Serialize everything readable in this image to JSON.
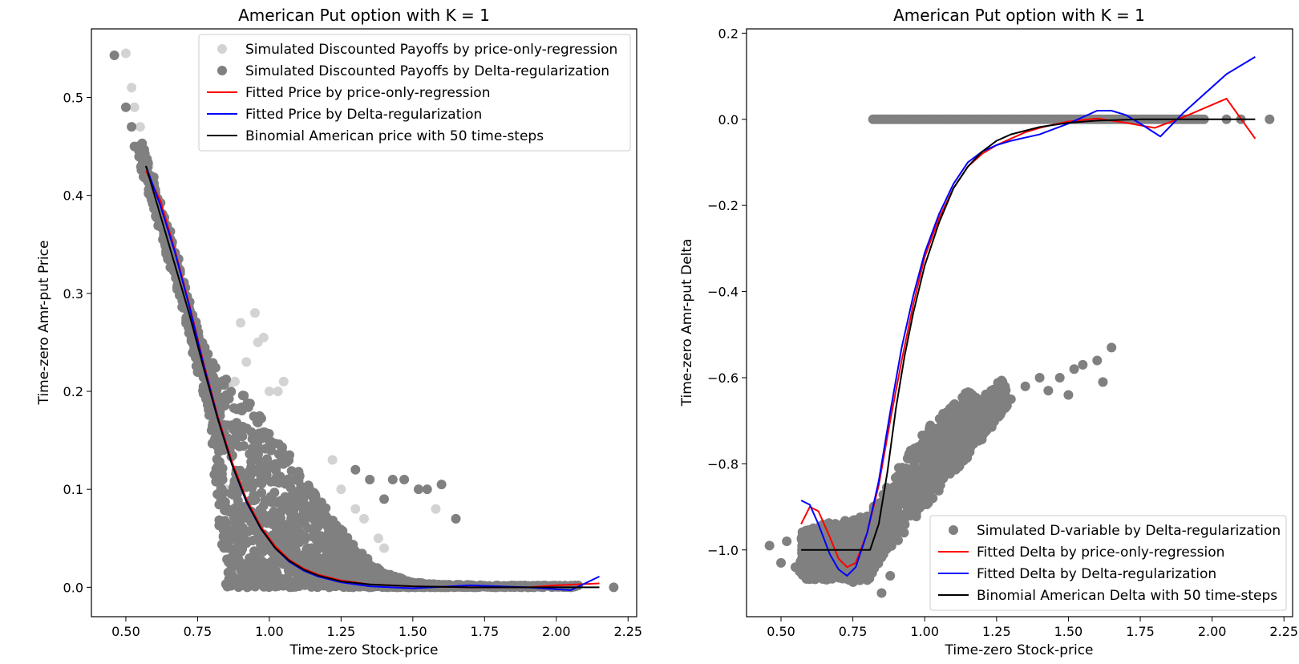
{
  "chart_data": [
    {
      "type": "scatter",
      "title": "American Put option with K = 1",
      "xlabel": "Time-zero Stock-price",
      "ylabel": "Time-zero Amr-put Price",
      "xlim": [
        0.38,
        2.28
      ],
      "ylim": [
        -0.03,
        0.57
      ],
      "xticks": [
        "0.50",
        "0.75",
        "1.00",
        "1.25",
        "1.50",
        "1.75",
        "2.00",
        "2.25"
      ],
      "yticks": [
        "0.0",
        "0.1",
        "0.2",
        "0.3",
        "0.4",
        "0.5"
      ],
      "grid": false,
      "legend_position": "top-right",
      "series": [
        {
          "name": "Simulated Discounted Payoffs by price-only-regression",
          "kind": "scatter",
          "color": "#d3d3d3",
          "points": [
            [
              0.5,
              0.545
            ],
            [
              0.52,
              0.51
            ],
            [
              0.53,
              0.49
            ],
            [
              0.55,
              0.47
            ],
            [
              0.58,
              0.43
            ],
            [
              0.86,
              0.205
            ],
            [
              0.88,
              0.21
            ],
            [
              0.9,
              0.27
            ],
            [
              0.92,
              0.23
            ],
            [
              0.95,
              0.28
            ],
            [
              0.96,
              0.25
            ],
            [
              0.98,
              0.255
            ],
            [
              1.0,
              0.2
            ],
            [
              1.03,
              0.2
            ],
            [
              1.05,
              0.21
            ],
            [
              0.83,
              0.14
            ],
            [
              0.84,
              0.05
            ],
            [
              0.85,
              0.1
            ],
            [
              1.22,
              0.13
            ],
            [
              1.25,
              0.1
            ],
            [
              1.3,
              0.08
            ],
            [
              1.33,
              0.07
            ],
            [
              1.38,
              0.05
            ],
            [
              1.4,
              0.04
            ],
            [
              1.58,
              0.08
            ]
          ]
        },
        {
          "name": "Simulated Discounted Payoffs by Delta-regularization",
          "kind": "scatter-dense",
          "color": "#808080",
          "points": [
            [
              0.46,
              0.543
            ],
            [
              0.5,
              0.49
            ],
            [
              0.52,
              0.47
            ],
            [
              0.53,
              0.45
            ],
            [
              1.3,
              0.12
            ],
            [
              1.35,
              0.11
            ],
            [
              1.4,
              0.09
            ],
            [
              1.43,
              0.11
            ],
            [
              1.47,
              0.11
            ],
            [
              1.52,
              0.1
            ],
            [
              1.55,
              0.1
            ],
            [
              1.6,
              0.105
            ],
            [
              1.65,
              0.07
            ],
            [
              2.2,
              0.0
            ],
            [
              1.9,
              0.0
            ],
            [
              2.05,
              0.0
            ]
          ],
          "band": [
            [
              0.55,
              0.435,
              0.46
            ],
            [
              0.6,
              0.39,
              0.41
            ],
            [
              0.65,
              0.34,
              0.36
            ],
            [
              0.7,
              0.29,
              0.31
            ],
            [
              0.75,
              0.23,
              0.26
            ],
            [
              0.8,
              0.17,
              0.23
            ],
            [
              0.85,
              0.0,
              0.21
            ],
            [
              0.9,
              0.0,
              0.2
            ],
            [
              0.95,
              0.0,
              0.18
            ],
            [
              1.0,
              0.0,
              0.16
            ],
            [
              1.05,
              0.0,
              0.14
            ],
            [
              1.1,
              0.0,
              0.12
            ],
            [
              1.15,
              0.0,
              0.1
            ],
            [
              1.2,
              0.0,
              0.08
            ],
            [
              1.25,
              0.0,
              0.06
            ],
            [
              1.3,
              0.0,
              0.04
            ],
            [
              1.35,
              0.0,
              0.025
            ],
            [
              1.4,
              0.0,
              0.015
            ],
            [
              1.45,
              0.0,
              0.01
            ],
            [
              1.5,
              0.0,
              0.005
            ],
            [
              1.6,
              0.0,
              0.003
            ],
            [
              1.8,
              0.0,
              0.002
            ],
            [
              2.08,
              0.0,
              0.002
            ]
          ]
        },
        {
          "name": "Fitted Price by price-only-regression",
          "kind": "line",
          "color": "#ff0000",
          "points": [
            [
              0.57,
              0.425
            ],
            [
              0.62,
              0.395
            ],
            [
              0.67,
              0.345
            ],
            [
              0.72,
              0.29
            ],
            [
              0.77,
              0.23
            ],
            [
              0.82,
              0.175
            ],
            [
              0.87,
              0.128
            ],
            [
              0.92,
              0.09
            ],
            [
              0.97,
              0.062
            ],
            [
              1.02,
              0.042
            ],
            [
              1.07,
              0.028
            ],
            [
              1.12,
              0.019
            ],
            [
              1.17,
              0.013
            ],
            [
              1.25,
              0.007
            ],
            [
              1.35,
              0.003
            ],
            [
              1.5,
              0.001
            ],
            [
              1.7,
              0.0
            ],
            [
              1.9,
              0.0
            ],
            [
              2.0,
              0.002
            ],
            [
              2.15,
              0.004
            ]
          ]
        },
        {
          "name": "Fitted Price by Delta-regularization",
          "kind": "line",
          "color": "#0000ff",
          "points": [
            [
              0.57,
              0.43
            ],
            [
              0.62,
              0.39
            ],
            [
              0.67,
              0.343
            ],
            [
              0.72,
              0.288
            ],
            [
              0.77,
              0.228
            ],
            [
              0.82,
              0.173
            ],
            [
              0.87,
              0.125
            ],
            [
              0.92,
              0.087
            ],
            [
              0.97,
              0.06
            ],
            [
              1.02,
              0.04
            ],
            [
              1.07,
              0.026
            ],
            [
              1.12,
              0.017
            ],
            [
              1.17,
              0.011
            ],
            [
              1.25,
              0.005
            ],
            [
              1.35,
              0.001
            ],
            [
              1.5,
              -0.001
            ],
            [
              1.7,
              0.002
            ],
            [
              1.9,
              0.0
            ],
            [
              2.05,
              -0.003
            ],
            [
              2.15,
              0.011
            ]
          ]
        },
        {
          "name": "Binomial American price with 50 time-steps",
          "kind": "line",
          "color": "#000000",
          "points": [
            [
              0.57,
              0.43
            ],
            [
              0.62,
              0.38
            ],
            [
              0.67,
              0.33
            ],
            [
              0.72,
              0.28
            ],
            [
              0.77,
              0.225
            ],
            [
              0.82,
              0.172
            ],
            [
              0.87,
              0.125
            ],
            [
              0.92,
              0.088
            ],
            [
              0.97,
              0.06
            ],
            [
              1.02,
              0.04
            ],
            [
              1.07,
              0.027
            ],
            [
              1.12,
              0.018
            ],
            [
              1.17,
              0.012
            ],
            [
              1.25,
              0.006
            ],
            [
              1.35,
              0.003
            ],
            [
              1.5,
              0.001
            ],
            [
              1.7,
              0.0
            ],
            [
              1.9,
              0.0
            ],
            [
              2.15,
              0.0
            ]
          ]
        }
      ]
    },
    {
      "type": "scatter",
      "title": "American Put option with K = 1",
      "xlabel": "Time-zero Stock-price",
      "ylabel": "Time-zero Amr-put Delta",
      "xlim": [
        0.38,
        2.28
      ],
      "ylim": [
        -1.155,
        0.21
      ],
      "xticks": [
        "0.50",
        "0.75",
        "1.00",
        "1.25",
        "1.50",
        "1.75",
        "2.00",
        "2.25"
      ],
      "yticks": [
        "0.2",
        "0.0",
        "−0.2",
        "−0.4",
        "−0.6",
        "−0.8",
        "−1.0"
      ],
      "grid": false,
      "legend_position": "bottom-right",
      "series": [
        {
          "name": "Simulated D-variable by Delta-regularization",
          "kind": "scatter-dense",
          "color": "#808080",
          "points": [
            [
              0.46,
              -0.99
            ],
            [
              0.5,
              -1.03
            ],
            [
              0.52,
              -0.98
            ],
            [
              0.55,
              -1.04
            ],
            [
              1.3,
              -0.65
            ],
            [
              1.35,
              -0.62
            ],
            [
              1.4,
              -0.6
            ],
            [
              1.43,
              -0.63
            ],
            [
              1.47,
              -0.6
            ],
            [
              1.52,
              -0.58
            ],
            [
              1.55,
              -0.57
            ],
            [
              1.6,
              -0.56
            ],
            [
              1.65,
              -0.53
            ],
            [
              1.62,
              -0.61
            ],
            [
              1.5,
              -0.64
            ],
            [
              0.85,
              -1.1
            ],
            [
              0.8,
              -1.07
            ],
            [
              0.88,
              -1.06
            ],
            [
              2.2,
              0.0
            ],
            [
              2.1,
              0.0
            ],
            [
              2.05,
              0.0
            ]
          ],
          "band": [
            [
              0.57,
              -1.06,
              -0.96
            ],
            [
              0.6,
              -1.07,
              -0.95
            ],
            [
              0.65,
              -1.07,
              -0.94
            ],
            [
              0.7,
              -1.07,
              -0.93
            ],
            [
              0.75,
              -1.08,
              -0.93
            ],
            [
              0.8,
              -1.07,
              -0.92
            ],
            [
              0.85,
              -1.02,
              -0.88
            ],
            [
              0.9,
              -0.98,
              -0.82
            ],
            [
              0.95,
              -0.94,
              -0.77
            ],
            [
              1.0,
              -0.9,
              -0.73
            ],
            [
              1.05,
              -0.86,
              -0.69
            ],
            [
              1.1,
              -0.82,
              -0.66
            ],
            [
              1.15,
              -0.78,
              -0.63
            ],
            [
              1.2,
              -0.74,
              -0.65
            ],
            [
              1.25,
              -0.7,
              -0.62
            ],
            [
              1.28,
              -0.67,
              -0.6
            ]
          ],
          "zeroline": [
            0.82,
            1.98
          ]
        },
        {
          "name": "Fitted Delta by price-only-regression",
          "kind": "line",
          "color": "#ff0000",
          "points": [
            [
              0.57,
              -0.94
            ],
            [
              0.6,
              -0.9
            ],
            [
              0.63,
              -0.91
            ],
            [
              0.67,
              -0.97
            ],
            [
              0.7,
              -1.02
            ],
            [
              0.73,
              -1.04
            ],
            [
              0.76,
              -1.03
            ],
            [
              0.8,
              -0.96
            ],
            [
              0.84,
              -0.85
            ],
            [
              0.88,
              -0.7
            ],
            [
              0.92,
              -0.56
            ],
            [
              0.96,
              -0.43
            ],
            [
              1.0,
              -0.32
            ],
            [
              1.05,
              -0.23
            ],
            [
              1.1,
              -0.16
            ],
            [
              1.15,
              -0.11
            ],
            [
              1.2,
              -0.08
            ],
            [
              1.25,
              -0.06
            ],
            [
              1.3,
              -0.045
            ],
            [
              1.35,
              -0.03
            ],
            [
              1.4,
              -0.02
            ],
            [
              1.45,
              -0.012
            ],
            [
              1.5,
              -0.005
            ],
            [
              1.6,
              0.002
            ],
            [
              1.7,
              -0.008
            ],
            [
              1.8,
              -0.02
            ],
            [
              1.9,
              0.005
            ],
            [
              2.05,
              0.048
            ],
            [
              2.15,
              -0.045
            ]
          ]
        },
        {
          "name": "Fitted Delta by Delta-regularization",
          "kind": "line",
          "color": "#0000ff",
          "points": [
            [
              0.57,
              -0.885
            ],
            [
              0.6,
              -0.895
            ],
            [
              0.63,
              -0.94
            ],
            [
              0.67,
              -1.01
            ],
            [
              0.7,
              -1.045
            ],
            [
              0.73,
              -1.06
            ],
            [
              0.76,
              -1.04
            ],
            [
              0.8,
              -0.96
            ],
            [
              0.84,
              -0.84
            ],
            [
              0.88,
              -0.68
            ],
            [
              0.92,
              -0.53
            ],
            [
              0.96,
              -0.41
            ],
            [
              1.0,
              -0.31
            ],
            [
              1.05,
              -0.22
            ],
            [
              1.1,
              -0.15
            ],
            [
              1.15,
              -0.1
            ],
            [
              1.2,
              -0.075
            ],
            [
              1.25,
              -0.06
            ],
            [
              1.3,
              -0.05
            ],
            [
              1.4,
              -0.035
            ],
            [
              1.5,
              -0.01
            ],
            [
              1.6,
              0.02
            ],
            [
              1.65,
              0.02
            ],
            [
              1.7,
              0.01
            ],
            [
              1.75,
              -0.01
            ],
            [
              1.82,
              -0.04
            ],
            [
              1.9,
              0.015
            ],
            [
              2.05,
              0.105
            ],
            [
              2.15,
              0.145
            ]
          ]
        },
        {
          "name": "Binomial American Delta with 50 time-steps",
          "kind": "line",
          "color": "#000000",
          "points": [
            [
              0.57,
              -1.0
            ],
            [
              0.81,
              -1.0
            ],
            [
              0.84,
              -0.94
            ],
            [
              0.87,
              -0.82
            ],
            [
              0.9,
              -0.67
            ],
            [
              0.93,
              -0.55
            ],
            [
              0.96,
              -0.45
            ],
            [
              1.0,
              -0.34
            ],
            [
              1.05,
              -0.24
            ],
            [
              1.1,
              -0.16
            ],
            [
              1.15,
              -0.11
            ],
            [
              1.2,
              -0.075
            ],
            [
              1.25,
              -0.05
            ],
            [
              1.3,
              -0.035
            ],
            [
              1.4,
              -0.018
            ],
            [
              1.5,
              -0.008
            ],
            [
              1.6,
              -0.003
            ],
            [
              1.75,
              0.0
            ],
            [
              2.15,
              0.0
            ]
          ]
        }
      ]
    }
  ]
}
